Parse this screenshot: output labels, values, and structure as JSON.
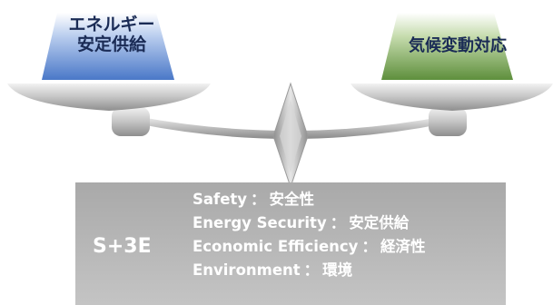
{
  "left_pan": {
    "label_line1": "エネルギー",
    "label_line2": "安定供給"
  },
  "right_pan": {
    "label": "気候変動対応"
  },
  "base": {
    "title": "S+3E",
    "pillars": [
      {
        "en": "Safety",
        "jp": "安全性"
      },
      {
        "en": "Energy Security",
        "jp": "安定供給"
      },
      {
        "en": "Economic Efficiency",
        "jp": "経済性"
      },
      {
        "en": "Environment",
        "jp": "環境"
      }
    ],
    "separator": "："
  },
  "colors": {
    "blue_block": "#4a78c8",
    "green_block": "#6fa04a",
    "metal": "#a8a8a8",
    "base_box": "#b3b3b3",
    "label_text": "#1a2b55"
  }
}
